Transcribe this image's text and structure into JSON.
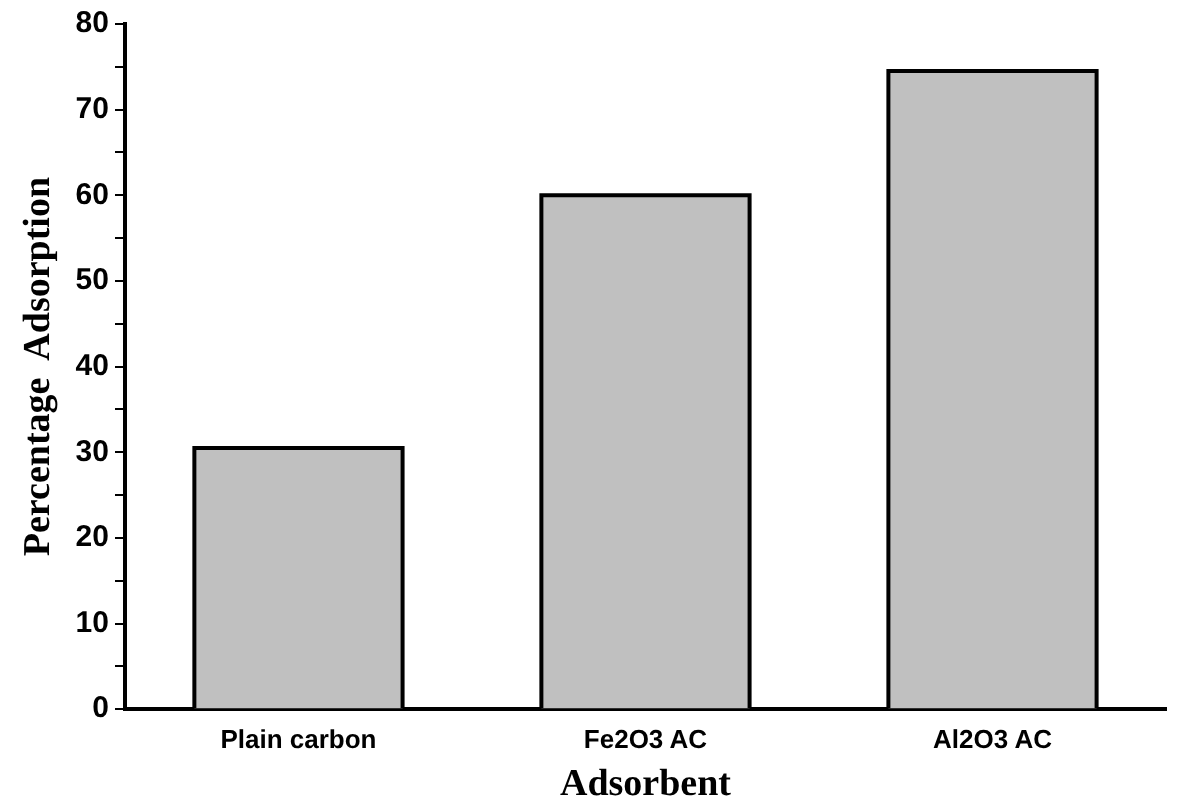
{
  "chart_data": {
    "type": "bar",
    "xlabel": "Adsorbent",
    "ylabel": "Percentage  Adsorption",
    "categories": [
      "Plain carbon",
      "Fe2O3 AC",
      "Al2O3 AC"
    ],
    "values": [
      30.5,
      60,
      74.5
    ],
    "color": "#c0c0c0",
    "ylim": [
      0,
      80
    ],
    "yticks": [
      0,
      {
        "value": 5,
        "label": null
      },
      10,
      {
        "value": 15,
        "label": null
      },
      20,
      {
        "value": 25,
        "label": null
      },
      30,
      {
        "value": 35,
        "label": null
      },
      40,
      {
        "value": 45,
        "label": null
      },
      50,
      {
        "value": 55,
        "label": null
      },
      60,
      {
        "value": 65,
        "label": null
      },
      70,
      {
        "value": 75,
        "label": null
      },
      80
    ],
    "grid": false,
    "legend": false
  }
}
